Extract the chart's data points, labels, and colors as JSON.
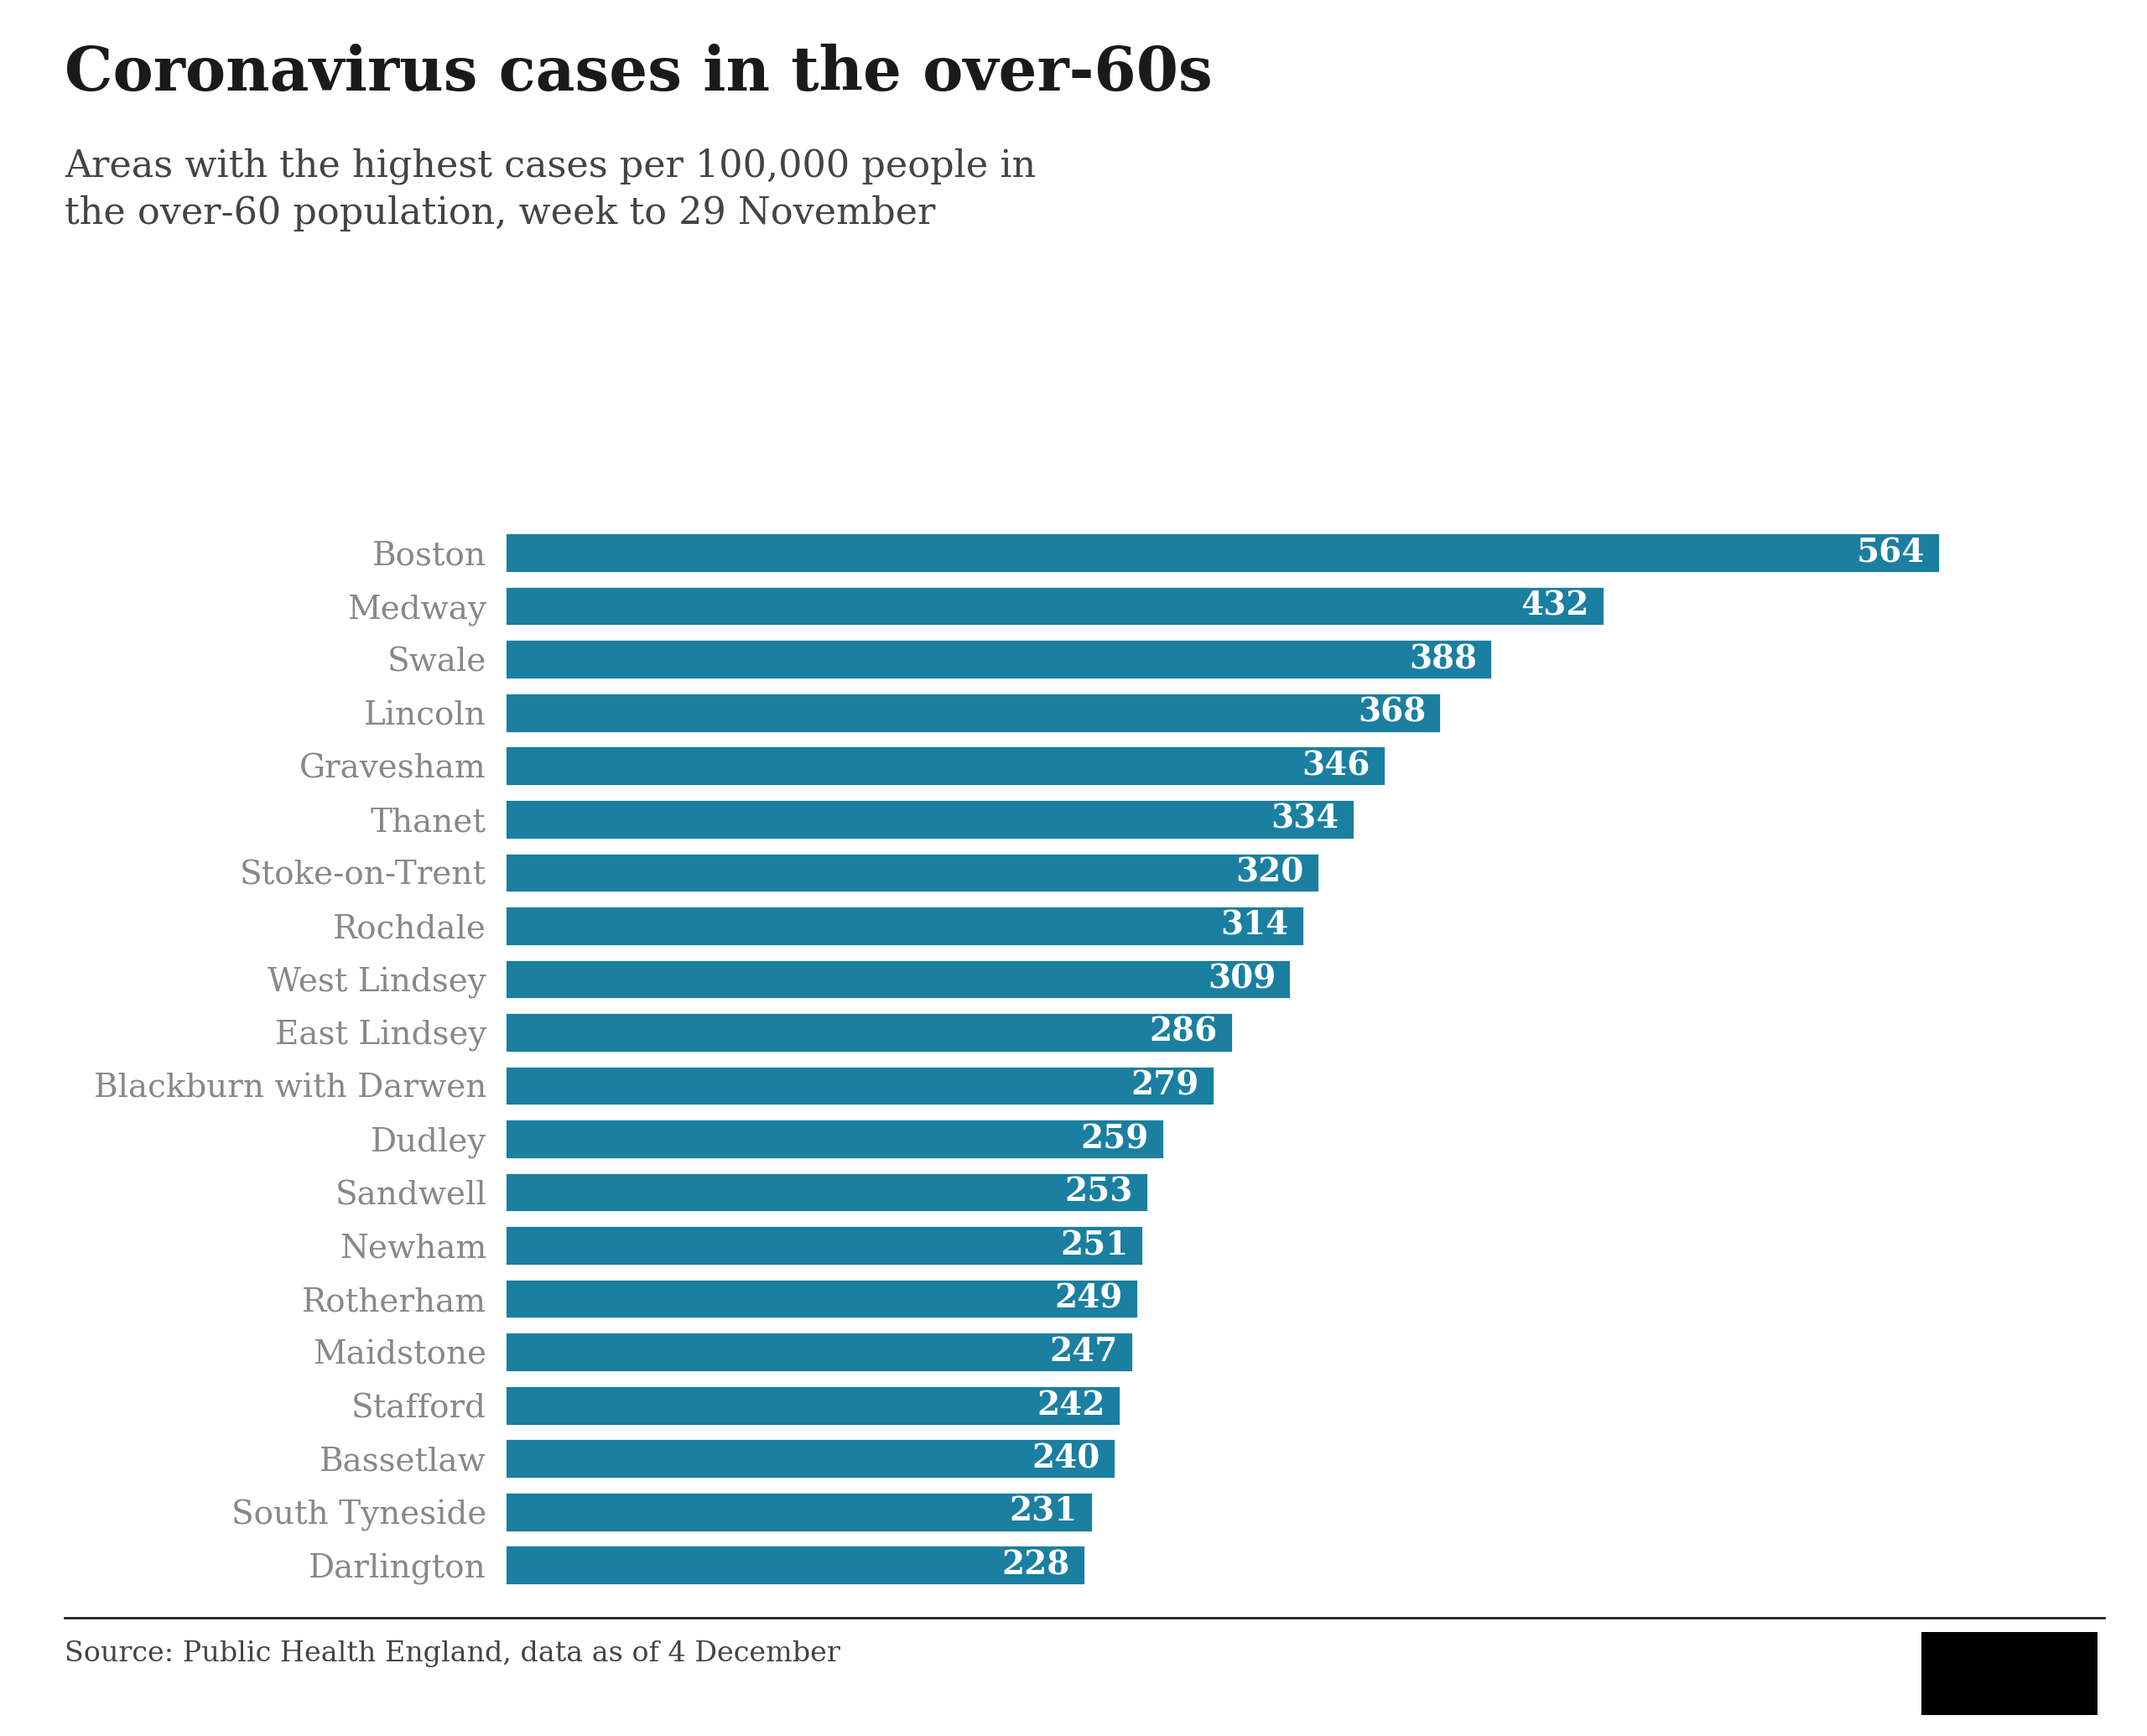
{
  "title": "Coronavirus cases in the over-60s",
  "subtitle": "Areas with the highest cases per 100,000 people in\nthe over-60 population, week to 29 November",
  "source": "Source: Public Health England, data as of 4 December",
  "categories": [
    "Boston",
    "Medway",
    "Swale",
    "Lincoln",
    "Gravesham",
    "Thanet",
    "Stoke-on-Trent",
    "Rochdale",
    "West Lindsey",
    "East Lindsey",
    "Blackburn with Darwen",
    "Dudley",
    "Sandwell",
    "Newham",
    "Rotherham",
    "Maidstone",
    "Stafford",
    "Bassetlaw",
    "South Tyneside",
    "Darlington"
  ],
  "values": [
    564,
    432,
    388,
    368,
    346,
    334,
    320,
    314,
    309,
    286,
    279,
    259,
    253,
    251,
    249,
    247,
    242,
    240,
    231,
    228
  ],
  "bar_color": "#1a7fa0",
  "label_color": "#ffffff",
  "category_color": "#888888",
  "title_color": "#1a1a1a",
  "subtitle_color": "#444444",
  "source_color": "#444444",
  "background_color": "#ffffff",
  "title_fontsize": 52,
  "subtitle_fontsize": 32,
  "source_fontsize": 24,
  "label_fontsize": 28,
  "category_fontsize": 28,
  "xlim": [
    0,
    620
  ],
  "bar_height": 0.75
}
